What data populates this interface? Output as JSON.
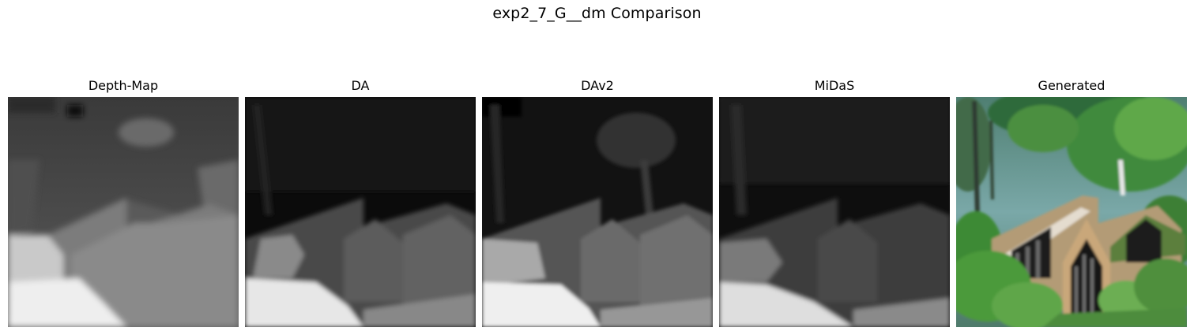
{
  "figure": {
    "title": "exp2_7_G__dm Comparison"
  },
  "panels": [
    {
      "label": "Depth-Map"
    },
    {
      "label": "DA"
    },
    {
      "label": "DAv2"
    },
    {
      "label": "MiDaS"
    },
    {
      "label": "Generated"
    }
  ]
}
